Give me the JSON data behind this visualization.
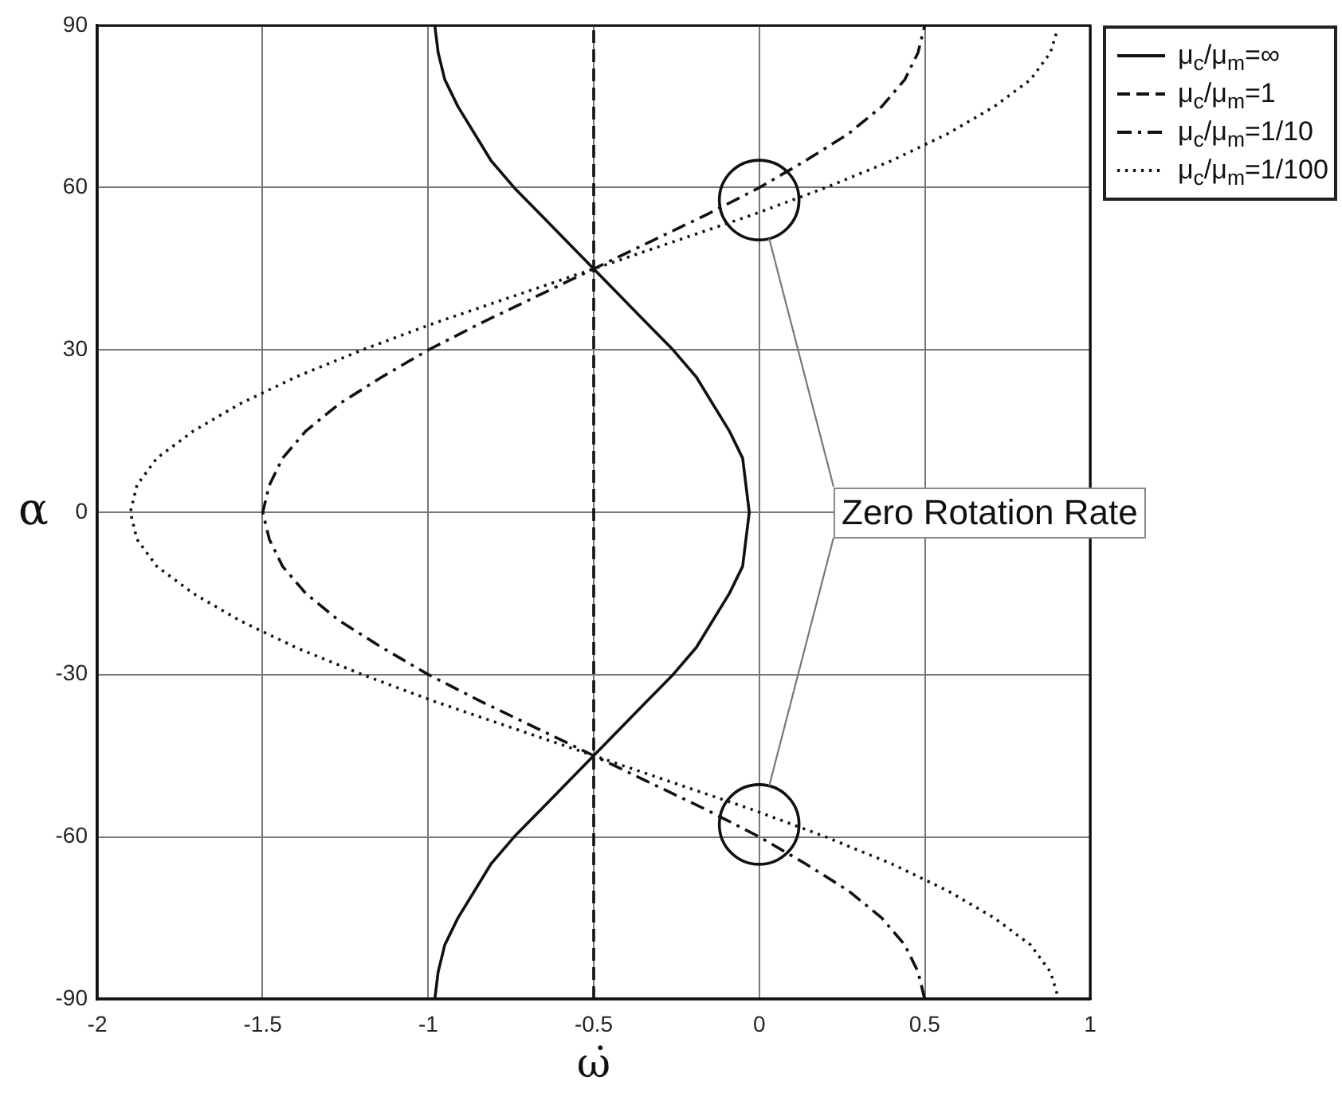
{
  "chart_data": {
    "type": "line",
    "xlabel": "ω̇",
    "ylabel": "α",
    "xlim": [
      -2,
      1
    ],
    "ylim": [
      -90,
      90
    ],
    "xticks": [
      -2,
      -1.5,
      -1,
      -0.5,
      0,
      0.5,
      1
    ],
    "yticks": [
      -90,
      -60,
      -30,
      0,
      30,
      60,
      90
    ],
    "grid": true,
    "legend": "top right",
    "series": [
      {
        "name": "μ$_{c}$/μ$_{m}$=∞",
        "color": "#111111",
        "line_style": "solid",
        "x": [
          -0.98,
          -0.97,
          -0.95,
          -0.91,
          -0.86,
          -0.81,
          -0.74,
          -0.66,
          -0.58,
          -0.5,
          -0.42,
          -0.34,
          -0.26,
          -0.19,
          -0.14,
          -0.09,
          -0.05,
          -0.03,
          -0.05,
          -0.09,
          -0.14,
          -0.19,
          -0.26,
          -0.34,
          -0.42,
          -0.5,
          -0.58,
          -0.66,
          -0.74,
          -0.81,
          -0.86,
          -0.91,
          -0.95,
          -0.97,
          -0.98
        ],
        "values": [
          -90,
          -85,
          -80,
          -75,
          -70,
          -65,
          -60,
          -55,
          -50,
          -45,
          -40,
          -35,
          -30,
          -25,
          -20,
          -15,
          -10,
          0,
          10,
          15,
          20,
          25,
          30,
          35,
          40,
          45,
          50,
          55,
          60,
          65,
          70,
          75,
          80,
          85,
          90
        ]
      },
      {
        "name": "μ$_{c}$/μ$_{m}$=1",
        "color": "#111111",
        "line_style": "dashed",
        "x": [
          -0.5,
          -0.5
        ],
        "values": [
          -90,
          90
        ]
      },
      {
        "name": "μ$_{c}$/μ$_{m}$=1/10",
        "color": "#111111",
        "line_style": "dashdot",
        "x": [
          0.5,
          0.48,
          0.44,
          0.37,
          0.27,
          0.14,
          0,
          -0.16,
          -0.33,
          -0.5,
          -0.67,
          -0.84,
          -1,
          -1.14,
          -1.27,
          -1.37,
          -1.44,
          -1.48,
          -1.5,
          -1.48,
          -1.44,
          -1.37,
          -1.27,
          -1.14,
          -1,
          -0.84,
          -0.67,
          -0.5,
          -0.33,
          -0.16,
          0,
          0.14,
          0.27,
          0.37,
          0.44,
          0.48,
          0.5
        ],
        "values": [
          -90,
          -85,
          -80,
          -75,
          -70,
          -65,
          -60,
          -55,
          -50,
          -45,
          -40,
          -35,
          -30,
          -25,
          -20,
          -15,
          -10,
          -5,
          0,
          5,
          10,
          15,
          20,
          25,
          30,
          35,
          40,
          45,
          50,
          55,
          60,
          65,
          70,
          75,
          80,
          85,
          90
        ]
      },
      {
        "name": "μ$_{c}$/μ$_{m}$=1/100",
        "color": "#111111",
        "line_style": "dotted",
        "x": [
          0.9,
          0.88,
          0.82,
          0.71,
          0.57,
          0.4,
          0.2,
          -0.02,
          -0.26,
          -0.5,
          -0.74,
          -0.98,
          -1.2,
          -1.4,
          -1.57,
          -1.71,
          -1.82,
          -1.88,
          -1.9,
          -1.88,
          -1.82,
          -1.71,
          -1.57,
          -1.4,
          -1.2,
          -0.98,
          -0.74,
          -0.5,
          -0.26,
          -0.02,
          0.2,
          0.4,
          0.57,
          0.71,
          0.82,
          0.88,
          0.9
        ],
        "values": [
          -89,
          -85,
          -80,
          -75,
          -70,
          -65,
          -60,
          -55,
          -50,
          -45,
          -40,
          -35,
          -30,
          -25,
          -20,
          -15,
          -10,
          -5,
          0,
          5,
          10,
          15,
          20,
          25,
          30,
          35,
          40,
          45,
          50,
          55,
          60,
          65,
          70,
          75,
          80,
          85,
          89
        ]
      }
    ],
    "annotations": [
      "Zero Rotation Rate"
    ]
  }
}
